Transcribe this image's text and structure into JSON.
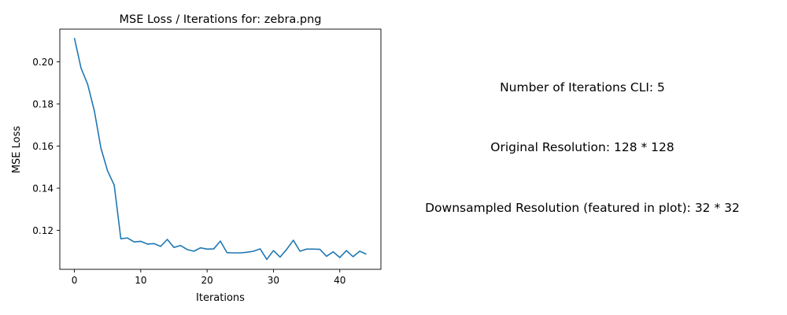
{
  "chart_data": {
    "type": "line",
    "title": "MSE Loss / Iterations for: zebra.png",
    "xlabel": "Iterations",
    "ylabel": "MSE Loss",
    "xlim": [
      -2.2,
      46.2
    ],
    "ylim": [
      0.1015,
      0.2155
    ],
    "xticks": [
      0,
      10,
      20,
      30,
      40
    ],
    "yticks": [
      0.12,
      0.14,
      0.16,
      0.18,
      0.2
    ],
    "grid": false,
    "series": [
      {
        "color": "#1f77b4",
        "x": [
          0,
          1,
          2,
          3,
          4,
          5,
          6,
          7,
          8,
          9,
          10,
          11,
          12,
          13,
          14,
          15,
          16,
          17,
          18,
          19,
          20,
          21,
          22,
          23,
          24,
          25,
          26,
          27,
          28,
          29,
          30,
          31,
          32,
          33,
          34,
          35,
          36,
          37,
          38,
          39,
          40,
          41,
          42,
          43,
          44
        ],
        "y": [
          0.2113,
          0.197,
          0.1893,
          0.1768,
          0.159,
          0.1482,
          0.1415,
          0.116,
          0.1164,
          0.1145,
          0.1148,
          0.1135,
          0.1137,
          0.1124,
          0.1157,
          0.1119,
          0.1128,
          0.1109,
          0.1101,
          0.1117,
          0.1111,
          0.1112,
          0.1149,
          0.1094,
          0.1093,
          0.1093,
          0.1096,
          0.1101,
          0.1112,
          0.1062,
          0.1104,
          0.1073,
          0.111,
          0.1153,
          0.1101,
          0.1111,
          0.1111,
          0.111,
          0.1077,
          0.1098,
          0.1071,
          0.1104,
          0.1075,
          0.1101,
          0.1087
        ]
      }
    ]
  },
  "info": {
    "iterations_cli": "Number of Iterations CLI: 5",
    "original_resolution": "Original Resolution: 128 * 128",
    "downsampled_resolution": "Downsampled Resolution (featured in plot): 32 * 32"
  }
}
